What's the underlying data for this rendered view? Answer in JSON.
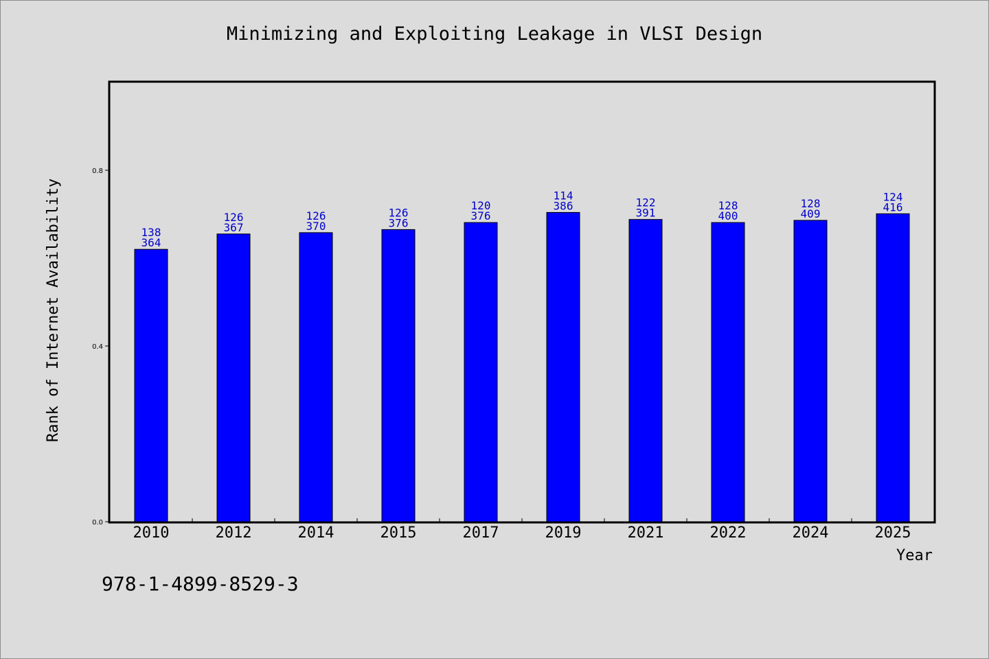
{
  "chart_data": {
    "type": "bar",
    "title": "Minimizing and Exploiting Leakage in VLSI Design",
    "xlabel": "Year",
    "ylabel": "Rank of Internet Availability",
    "categories": [
      "2010",
      "2012",
      "2014",
      "2015",
      "2017",
      "2019",
      "2021",
      "2022",
      "2024",
      "2025"
    ],
    "values": [
      0.62,
      0.655,
      0.658,
      0.665,
      0.681,
      0.704,
      0.688,
      0.681,
      0.686,
      0.701
    ],
    "label_top": [
      "138",
      "126",
      "126",
      "126",
      "120",
      "114",
      "122",
      "128",
      "128",
      "124"
    ],
    "label_bottom": [
      "364",
      "367",
      "370",
      "376",
      "376",
      "386",
      "391",
      "400",
      "409",
      "416"
    ],
    "ylim": [
      0.0,
      1.0
    ],
    "yticks": [
      0.0,
      0.4,
      0.8
    ],
    "ytick_labels": [
      "0.0",
      "0.4",
      "0.8"
    ],
    "bar_color": "#0000ff",
    "label_color": "#0000cc",
    "grid": false,
    "legend": "none"
  },
  "footer": {
    "isbn": "978-1-4899-8529-3"
  }
}
